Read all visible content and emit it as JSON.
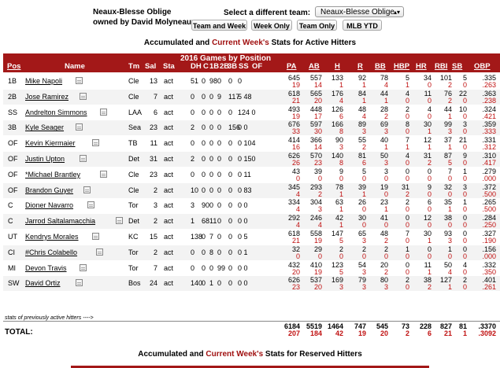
{
  "team": {
    "name": "Neaux-Blesse Oblige",
    "owner": "owned by David Molyneaux"
  },
  "selector": {
    "label": "Select a different team:",
    "value": "Neaux-Blesse Oblige"
  },
  "buttons": [
    "Team and Week",
    "Week Only",
    "Team Only",
    "MLB YTD"
  ],
  "section1": {
    "pre": "Accumulated and ",
    "cw": "Current Week's",
    "post": " Stats for Active Hitters"
  },
  "section2": {
    "pre": "Accumulated and ",
    "cw": "Current Week's",
    "post": " Stats for Reserved Hitters"
  },
  "header": {
    "games_by_pos": "2016 Games by Position",
    "pos": "Pos",
    "name": "Name",
    "tm": "Tm",
    "sal": "Sal",
    "sta": "Sta",
    "gpos": [
      "DH",
      "C",
      "1B",
      "2B",
      "3B",
      "SS",
      "OF"
    ],
    "stats": [
      "PA",
      "AB",
      "H",
      "R",
      "BB",
      "HBP",
      "HR",
      "RBI",
      "SB",
      "OBP"
    ]
  },
  "colors": {
    "header_bg": "#a31818",
    "current_week": "#c01010"
  },
  "rows": [
    {
      "pos": "1B",
      "name": "Mike Napoli",
      "tm": "Cle",
      "sal": "13",
      "sta": "act",
      "g": [
        "",
        "51",
        "0",
        "98",
        "0",
        "0",
        "0"
      ],
      "acc": [
        "645",
        "557",
        "133",
        "92",
        "78",
        "5",
        "34",
        "101",
        "5",
        ".335"
      ],
      "cw": [
        "19",
        "14",
        "1",
        "1",
        "4",
        "1",
        "0",
        "2",
        "0",
        ".263"
      ]
    },
    {
      "pos": "2B",
      "name": "Jose Ramirez",
      "tm": "Cle",
      "sal": "7",
      "sta": "act",
      "g": [
        "",
        "0",
        "0",
        "0",
        "9",
        "117",
        "5 48"
      ],
      "acc": [
        "618",
        "565",
        "176",
        "84",
        "44",
        "4",
        "11",
        "76",
        "22",
        ".363"
      ],
      "cw": [
        "21",
        "20",
        "4",
        "1",
        "1",
        "0",
        "0",
        "2",
        "0",
        ".238"
      ]
    },
    {
      "pos": "SS",
      "name": "Andrelton Simmons",
      "tm": "LAA",
      "sal": "6",
      "sta": "act",
      "g": [
        "",
        "0",
        "0",
        "0",
        "0",
        "0",
        "124 0"
      ],
      "acc": [
        "493",
        "448",
        "126",
        "48",
        "28",
        "2",
        "4",
        "44",
        "10",
        ".324"
      ],
      "cw": [
        "19",
        "17",
        "6",
        "4",
        "2",
        "0",
        "0",
        "1",
        "0",
        ".421"
      ]
    },
    {
      "pos": "3B",
      "name": "Kyle Seager",
      "tm": "Sea",
      "sal": "23",
      "sta": "act",
      "g": [
        "",
        "2",
        "0",
        "0",
        "0",
        "156",
        "0 0"
      ],
      "acc": [
        "676",
        "597",
        "166",
        "89",
        "69",
        "8",
        "30",
        "99",
        "3",
        ".359"
      ],
      "cw": [
        "33",
        "30",
        "8",
        "3",
        "3",
        "0",
        "1",
        "3",
        "0",
        ".333"
      ]
    },
    {
      "pos": "OF",
      "name": "Kevin Kiermaier",
      "tm": "TB",
      "sal": "11",
      "sta": "act",
      "g": [
        "",
        "0",
        "0",
        "0",
        "0",
        "0",
        "0 104"
      ],
      "acc": [
        "414",
        "366",
        "90",
        "55",
        "40",
        "7",
        "12",
        "37",
        "21",
        ".331"
      ],
      "cw": [
        "16",
        "14",
        "3",
        "2",
        "1",
        "1",
        "1",
        "1",
        "0",
        ".312"
      ]
    },
    {
      "pos": "OF",
      "name": "Justin Upton",
      "tm": "Det",
      "sal": "31",
      "sta": "act",
      "g": [
        "",
        "2",
        "0",
        "0",
        "0",
        "0",
        "0 150"
      ],
      "acc": [
        "626",
        "570",
        "140",
        "81",
        "50",
        "4",
        "31",
        "87",
        "9",
        ".310"
      ],
      "cw": [
        "26",
        "23",
        "8",
        "6",
        "3",
        "0",
        "2",
        "5",
        "0",
        ".417"
      ]
    },
    {
      "pos": "OF",
      "name": "*Michael Brantley",
      "tm": "Cle",
      "sal": "23",
      "sta": "act",
      "g": [
        "",
        "0",
        "0",
        "0",
        "0",
        "0",
        "0 11"
      ],
      "acc": [
        "43",
        "39",
        "9",
        "5",
        "3",
        "0",
        "0",
        "7",
        "1",
        ".279"
      ],
      "cw": [
        "0",
        "0",
        "0",
        "0",
        "0",
        "0",
        "0",
        "0",
        "0",
        ".000"
      ]
    },
    {
      "pos": "OF",
      "name": "Brandon Guyer",
      "tm": "Cle",
      "sal": "2",
      "sta": "act",
      "g": [
        "",
        "10",
        "0",
        "0",
        "0",
        "0",
        "0 83"
      ],
      "acc": [
        "345",
        "293",
        "78",
        "39",
        "19",
        "31",
        "9",
        "32",
        "3",
        ".372"
      ],
      "cw": [
        "4",
        "2",
        "1",
        "1",
        "0",
        "2",
        "0",
        "0",
        "0",
        ".500"
      ]
    },
    {
      "pos": "C",
      "name": "Dioner Navarro",
      "tm": "Tor",
      "sal": "3",
      "sta": "act",
      "g": [
        "",
        "3",
        "90",
        "0",
        "0",
        "0",
        "0 0"
      ],
      "acc": [
        "334",
        "304",
        "63",
        "26",
        "23",
        "2",
        "6",
        "35",
        "1",
        ".265"
      ],
      "cw": [
        "4",
        "3",
        "1",
        "0",
        "1",
        "0",
        "0",
        "1",
        "0",
        ".500"
      ]
    },
    {
      "pos": "C",
      "name": "Jarrod Saltalamacchia",
      "tm": "Det",
      "sal": "2",
      "sta": "act",
      "g": [
        "",
        "1",
        "68",
        "11",
        "0",
        "0",
        "0 0"
      ],
      "acc": [
        "292",
        "246",
        "42",
        "30",
        "41",
        "0",
        "12",
        "38",
        "0",
        ".284"
      ],
      "cw": [
        "4",
        "4",
        "1",
        "0",
        "0",
        "0",
        "0",
        "0",
        "0",
        ".250"
      ]
    },
    {
      "pos": "UT",
      "name": "Kendrys Morales",
      "tm": "KC",
      "sal": "15",
      "sta": "act",
      "g": [
        "",
        "138",
        "0",
        "7",
        "0",
        "0",
        "0 5"
      ],
      "acc": [
        "618",
        "558",
        "147",
        "65",
        "48",
        "7",
        "30",
        "93",
        "0",
        ".327"
      ],
      "cw": [
        "21",
        "19",
        "5",
        "3",
        "2",
        "0",
        "1",
        "3",
        "0",
        ".190"
      ]
    },
    {
      "pos": "CI",
      "name": "#Chris Colabello",
      "tm": "Tor",
      "sal": "2",
      "sta": "act",
      "g": [
        "",
        "0",
        "0",
        "8",
        "0",
        "0",
        "0 1"
      ],
      "acc": [
        "32",
        "29",
        "2",
        "2",
        "2",
        "1",
        "0",
        "1",
        "0",
        ".156"
      ],
      "cw": [
        "0",
        "0",
        "0",
        "0",
        "0",
        "0",
        "0",
        "0",
        "0",
        ".000"
      ]
    },
    {
      "pos": "MI",
      "name": "Devon Travis",
      "tm": "Tor",
      "sal": "7",
      "sta": "act",
      "g": [
        "",
        "0",
        "0",
        "0",
        "99",
        "0",
        "0 0"
      ],
      "acc": [
        "432",
        "410",
        "123",
        "54",
        "20",
        "0",
        "11",
        "50",
        "4",
        ".332"
      ],
      "cw": [
        "20",
        "19",
        "5",
        "3",
        "2",
        "0",
        "1",
        "4",
        "0",
        ".350"
      ]
    },
    {
      "pos": "SW",
      "name": "David Ortiz",
      "tm": "Bos",
      "sal": "24",
      "sta": "act",
      "g": [
        "",
        "140",
        "0",
        "1",
        "0",
        "0",
        "0 0"
      ],
      "acc": [
        "626",
        "537",
        "169",
        "79",
        "80",
        "2",
        "38",
        "127",
        "2",
        ".401"
      ],
      "cw": [
        "23",
        "20",
        "3",
        "3",
        "3",
        "0",
        "2",
        "1",
        "0",
        ".261"
      ]
    }
  ],
  "prev_note": "stats of previously active hitters ---->",
  "total": {
    "label": "TOTAL:",
    "acc": [
      "6184",
      "5519",
      "1464",
      "747",
      "545",
      "73",
      "228",
      "827",
      "81",
      ".3370"
    ],
    "cw": [
      "207",
      "184",
      "42",
      "19",
      "20",
      "2",
      "6",
      "21",
      "1",
      ".3092"
    ]
  }
}
